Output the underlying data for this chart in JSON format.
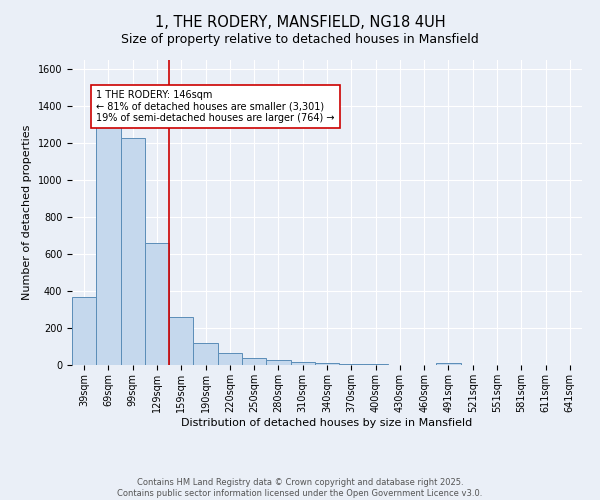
{
  "title": "1, THE RODERY, MANSFIELD, NG18 4UH",
  "subtitle": "Size of property relative to detached houses in Mansfield",
  "xlabel": "Distribution of detached houses by size in Mansfield",
  "ylabel": "Number of detached properties",
  "categories": [
    "39sqm",
    "69sqm",
    "99sqm",
    "129sqm",
    "159sqm",
    "190sqm",
    "220sqm",
    "250sqm",
    "280sqm",
    "310sqm",
    "340sqm",
    "370sqm",
    "400sqm",
    "430sqm",
    "460sqm",
    "491sqm",
    "521sqm",
    "551sqm",
    "581sqm",
    "611sqm",
    "641sqm"
  ],
  "values": [
    370,
    1290,
    1230,
    660,
    260,
    120,
    65,
    38,
    28,
    18,
    10,
    5,
    3,
    2,
    0,
    10,
    0,
    0,
    0,
    0,
    0
  ],
  "bar_color": "#c5d8ed",
  "bar_edge_color": "#5b8db8",
  "annotation_text": "1 THE RODERY: 146sqm\n← 81% of detached houses are smaller (3,301)\n19% of semi-detached houses are larger (764) →",
  "annotation_box_color": "#ffffff",
  "annotation_box_edge": "#cc0000",
  "red_line_color": "#cc0000",
  "ylim": [
    0,
    1650
  ],
  "yticks": [
    0,
    200,
    400,
    600,
    800,
    1000,
    1200,
    1400,
    1600
  ],
  "bg_color": "#eaeff7",
  "plot_bg_color": "#eaeff7",
  "grid_color": "#ffffff",
  "footer_line1": "Contains HM Land Registry data © Crown copyright and database right 2025.",
  "footer_line2": "Contains public sector information licensed under the Open Government Licence v3.0.",
  "title_fontsize": 10.5,
  "subtitle_fontsize": 9,
  "xlabel_fontsize": 8,
  "ylabel_fontsize": 8,
  "tick_fontsize": 7,
  "annotation_fontsize": 7,
  "footer_fontsize": 6
}
